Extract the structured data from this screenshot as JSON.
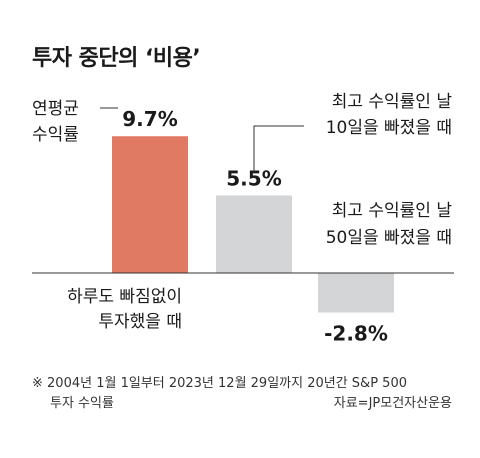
{
  "title": "투자 중단의 ‘비용’",
  "chart_data": {
    "type": "bar",
    "categories": [
      [
        "하루도 빠짐없이",
        "투자했을 때"
      ],
      [
        "최고 수익률인 날",
        "10일을 빠졌을 때"
      ],
      [
        "최고 수익률인 날",
        "50일을 빠졌을 때"
      ]
    ],
    "value_labels": [
      "9.7%",
      "5.5%",
      "-2.8%"
    ],
    "values": [
      9.7,
      5.5,
      -2.8
    ],
    "colors": [
      "#E07A63",
      "#D4D5D7",
      "#D4D5D7"
    ],
    "ylabel": [
      "연평균",
      "수익률"
    ],
    "ylim": [
      -3,
      10
    ]
  },
  "footnote": {
    "line1": "※ 2004년 1월 1일부터 2023년 12월 29일까지 20년간 S&P 500",
    "line2": "투자 수익률",
    "source": "자료=JP모건자산운용"
  }
}
